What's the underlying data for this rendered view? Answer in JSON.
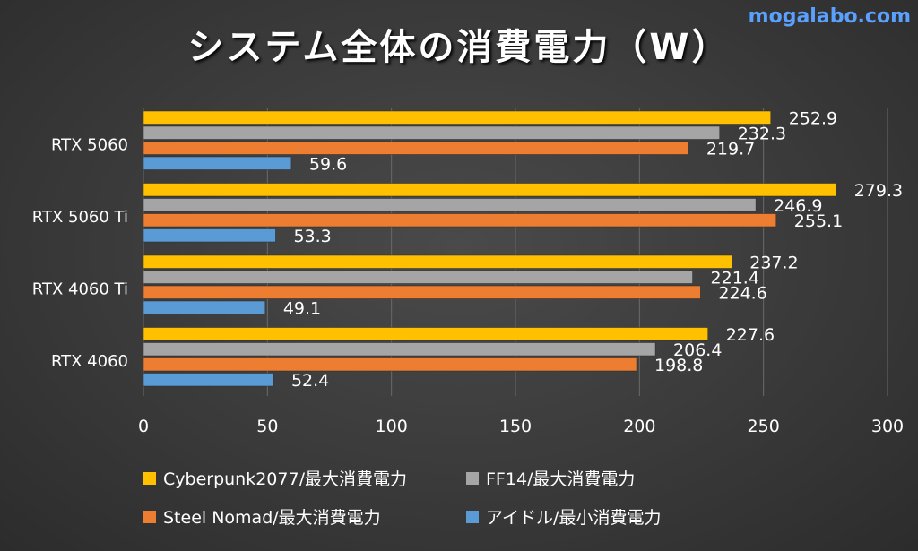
{
  "watermark": "mogalabo.com",
  "chart_data": {
    "type": "bar",
    "orientation": "horizontal",
    "title": "システム全体の消費電力（W）",
    "categories": [
      "RTX 5060",
      "RTX 5060 Ti",
      "RTX 4060 Ti",
      "RTX 4060"
    ],
    "series": [
      {
        "name": "Cyberpunk2077/最大消費電力",
        "color": "#FFC000",
        "values": [
          252.9,
          279.3,
          237.2,
          227.6
        ]
      },
      {
        "name": "FF14/最大消費電力",
        "color": "#A5A5A5",
        "values": [
          232.3,
          246.9,
          221.4,
          206.4
        ]
      },
      {
        "name": "Steel Nomad/最大消費電力",
        "color": "#ED7D31",
        "values": [
          219.7,
          255.1,
          224.6,
          198.8
        ]
      },
      {
        "name": "アイドル/最小消費電力",
        "color": "#5B9BD5",
        "values": [
          59.6,
          53.3,
          49.1,
          52.4
        ]
      }
    ],
    "xlim": [
      0,
      300
    ],
    "xticks": [
      0,
      50,
      100,
      150,
      200,
      250,
      300
    ],
    "grid": true,
    "legend_position": "bottom"
  }
}
